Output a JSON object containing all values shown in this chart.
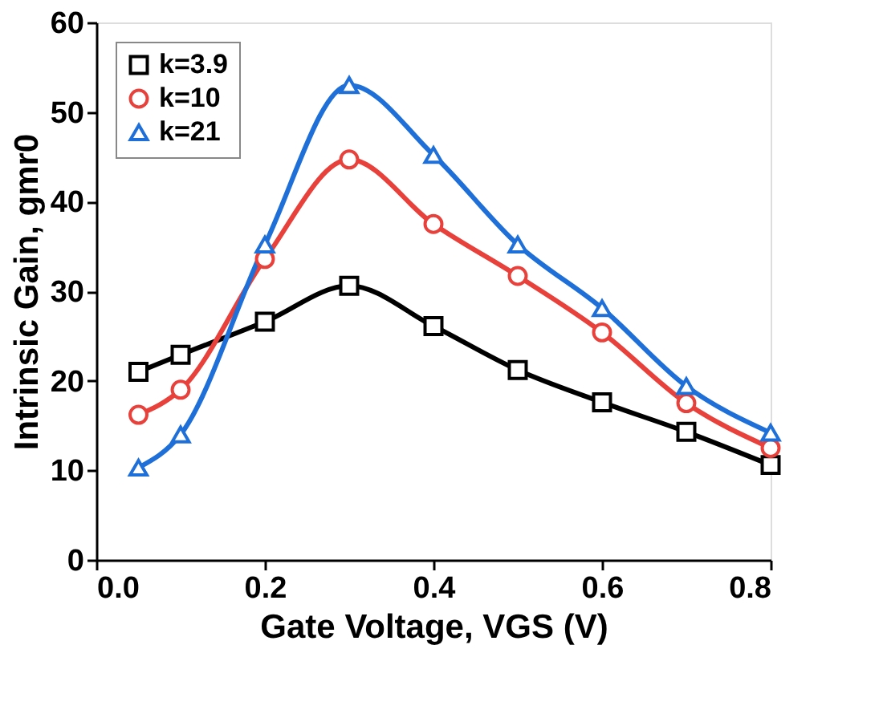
{
  "chart_data": {
    "type": "line",
    "xlabel": "Gate Voltage, VGS (V)",
    "ylabel": "Intrinsic Gain, gmr0",
    "x": [
      0.05,
      0.1,
      0.2,
      0.3,
      0.4,
      0.5,
      0.6,
      0.7,
      0.8
    ],
    "series": [
      {
        "name": "k=3.9",
        "color": "#000000",
        "marker": "square",
        "values": [
          21.0,
          22.9,
          26.6,
          30.6,
          26.1,
          21.2,
          17.6,
          14.3,
          10.6
        ]
      },
      {
        "name": "k=10",
        "color": "#e8403a",
        "marker": "circle",
        "values": [
          16.2,
          19.0,
          33.6,
          44.7,
          37.5,
          31.7,
          25.4,
          17.5,
          12.5
        ]
      },
      {
        "name": "k=21",
        "color": "#1f6fd8",
        "marker": "triangle",
        "values": [
          10.3,
          14.0,
          35.2,
          53.0,
          45.2,
          35.2,
          28.1,
          19.4,
          14.2
        ]
      }
    ],
    "xlim": [
      0.0,
      0.8
    ],
    "xticks": [
      {
        "value": 0.0,
        "label": "0.0"
      },
      0.2,
      0.4,
      0.6,
      0.8
    ],
    "ylim": [
      0,
      60
    ],
    "yticks": [
      0,
      10,
      20,
      30,
      40,
      50,
      60
    ],
    "grid": false,
    "legend": "top left",
    "line_style": "solid"
  }
}
